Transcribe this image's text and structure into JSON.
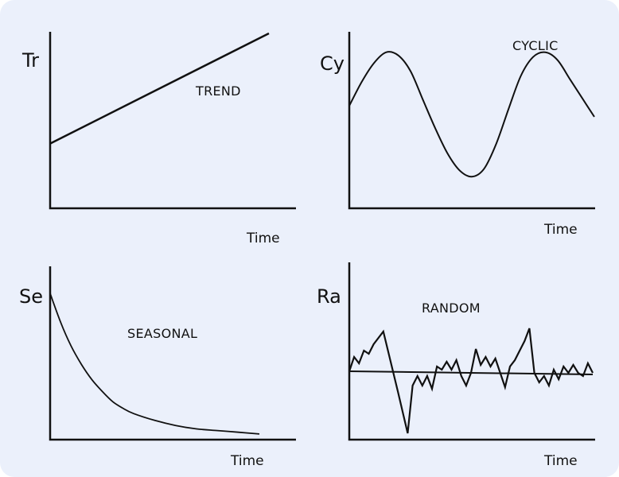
{
  "chart_data": [
    {
      "type": "line",
      "title": "TREND",
      "ylabel": "Tr",
      "xlabel": "Time",
      "series": [
        {
          "x": [
            0,
            1
          ],
          "y": [
            0.3,
            1.0
          ]
        }
      ]
    },
    {
      "type": "line",
      "title": "CYCLIC",
      "ylabel": "Cy",
      "xlabel": "Time",
      "series": [
        {
          "x": [
            0,
            0.05,
            0.1,
            0.15,
            0.2,
            0.25,
            0.3,
            0.35,
            0.4,
            0.45,
            0.5,
            0.55,
            0.6,
            0.65,
            0.7,
            0.75,
            0.8,
            0.85,
            0.9,
            0.95,
            1.0
          ],
          "y": [
            0.54,
            0.69,
            0.81,
            0.88,
            0.86,
            0.76,
            0.58,
            0.4,
            0.24,
            0.13,
            0.09,
            0.14,
            0.3,
            0.52,
            0.73,
            0.85,
            0.88,
            0.83,
            0.71,
            0.59,
            0.47
          ]
        }
      ]
    },
    {
      "type": "line",
      "title": "SEASONAL",
      "ylabel": "Se",
      "xlabel": "Time",
      "series": [
        {
          "x": [
            0,
            0.05,
            0.1,
            0.15,
            0.2,
            0.25,
            0.3,
            0.35,
            0.4,
            0.5,
            0.6,
            0.7,
            0.8,
            0.9,
            1.0
          ],
          "y": [
            0.84,
            0.67,
            0.53,
            0.42,
            0.33,
            0.26,
            0.2,
            0.16,
            0.13,
            0.09,
            0.06,
            0.04,
            0.03,
            0.02,
            0.01
          ]
        }
      ]
    },
    {
      "type": "line",
      "title": "RANDOM",
      "ylabel": "Ra",
      "xlabel": "Time",
      "series": [
        {
          "x": [
            0,
            0.02,
            0.04,
            0.06,
            0.08,
            0.1,
            0.14,
            0.2,
            0.24,
            0.26,
            0.28,
            0.3,
            0.32,
            0.34,
            0.36,
            0.38,
            0.4,
            0.42,
            0.44,
            0.46,
            0.48,
            0.5,
            0.52,
            0.54,
            0.56,
            0.58,
            0.6,
            0.62,
            0.64,
            0.66,
            0.68,
            0.7,
            0.72,
            0.74,
            0.76,
            0.78,
            0.8,
            0.82,
            0.84,
            0.86,
            0.88,
            0.9,
            0.92,
            0.94,
            0.96,
            0.98,
            1.0
          ],
          "y": [
            0.39,
            0.48,
            0.44,
            0.52,
            0.5,
            0.56,
            0.64,
            0.26,
            0.0,
            0.3,
            0.36,
            0.3,
            0.36,
            0.28,
            0.42,
            0.4,
            0.45,
            0.4,
            0.46,
            0.36,
            0.3,
            0.38,
            0.53,
            0.43,
            0.48,
            0.42,
            0.47,
            0.38,
            0.29,
            0.42,
            0.46,
            0.52,
            0.58,
            0.66,
            0.38,
            0.32,
            0.36,
            0.3,
            0.4,
            0.34,
            0.42,
            0.38,
            0.43,
            0.38,
            0.36,
            0.44,
            0.38
          ]
        },
        {
          "x": [
            0,
            1
          ],
          "y": [
            0.39,
            0.37
          ]
        }
      ]
    }
  ]
}
